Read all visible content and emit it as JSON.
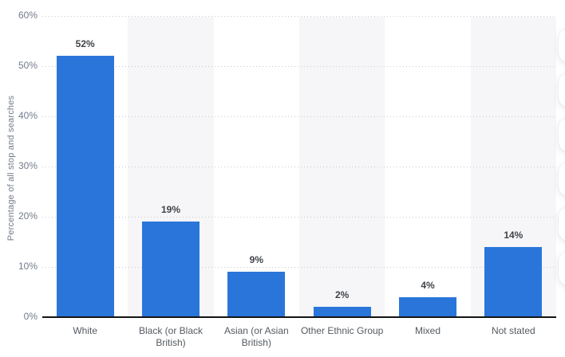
{
  "chart_data": {
    "type": "bar",
    "title": "",
    "categories": [
      "White",
      "Black (or Black British)",
      "Asian (or Asian British)",
      "Other Ethnic Group",
      "Mixed",
      "Not stated"
    ],
    "values": [
      52,
      19,
      9,
      2,
      4,
      14
    ],
    "value_labels": [
      "52%",
      "19%",
      "9%",
      "2%",
      "4%",
      "14%"
    ],
    "xlabel": "",
    "ylabel": "Percentage of all stop and searches",
    "ylim": [
      0,
      60
    ],
    "y_ticks": [
      {
        "value": 0,
        "label": "0%"
      },
      {
        "value": 10,
        "label": "10%"
      },
      {
        "value": 20,
        "label": "20%"
      },
      {
        "value": 30,
        "label": "30%"
      },
      {
        "value": 40,
        "label": "40%"
      },
      {
        "value": 50,
        "label": "50%"
      },
      {
        "value": 60,
        "label": "60%"
      }
    ],
    "grid": "horizontal-dotted",
    "legend": "none",
    "bar_color": "#2a75da",
    "alternating_column_bands": true
  },
  "colors": {
    "bar": "#2a75da",
    "band": "#f6f6f8",
    "gridline": "#cbcbcb",
    "axis": "#141414",
    "tick_label": "#737b8b",
    "category_label": "#555b61",
    "value_label": "#404448",
    "background": "#ffffff"
  }
}
